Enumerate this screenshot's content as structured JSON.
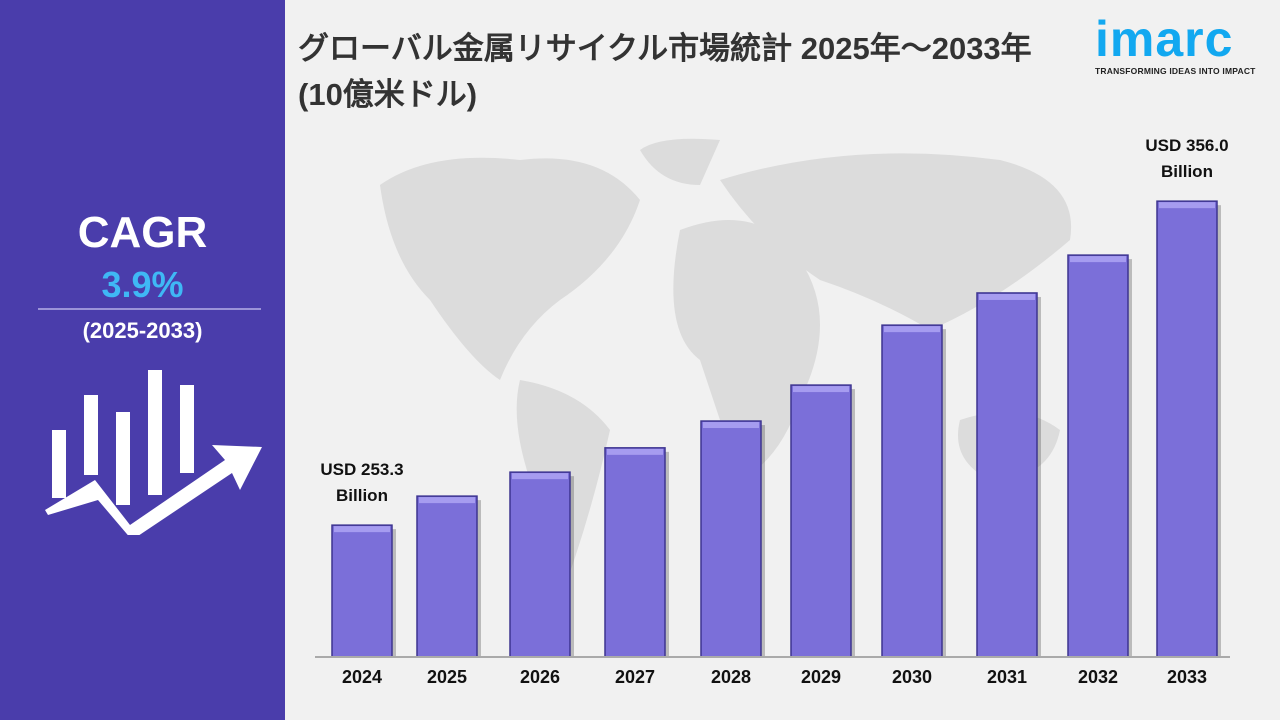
{
  "title": "グローバル金属リサイクル市場統計 2025年～2033年 (10億米ドル)",
  "logo": {
    "word": "imarc",
    "tagline": "TRANSFORMING IDEAS INTO IMPACT"
  },
  "cagr": {
    "label": "CAGR",
    "value": "3.9%",
    "period": "(2025-2033)"
  },
  "colors": {
    "panel": "#4a3dab",
    "bar": "#7b6fd9",
    "cagr_value": "#3fb8f5",
    "logo": "#12a8f0"
  },
  "chart_data": {
    "type": "bar",
    "categories": [
      "2024",
      "2025",
      "2026",
      "2027",
      "2028",
      "2029",
      "2030",
      "2031",
      "2032",
      "2033"
    ],
    "values": [
      253.3,
      262.5,
      270.1,
      277.8,
      286.3,
      297.7,
      316.7,
      326.9,
      338.9,
      356.0
    ],
    "annotations": [
      {
        "category": "2024",
        "line1": "USD 253.3",
        "line2": "Billion"
      },
      {
        "category": "2033",
        "line1": "USD 356.0",
        "line2": "Billion"
      }
    ],
    "unit": "Billion USD",
    "grid": false,
    "legend": "none"
  }
}
